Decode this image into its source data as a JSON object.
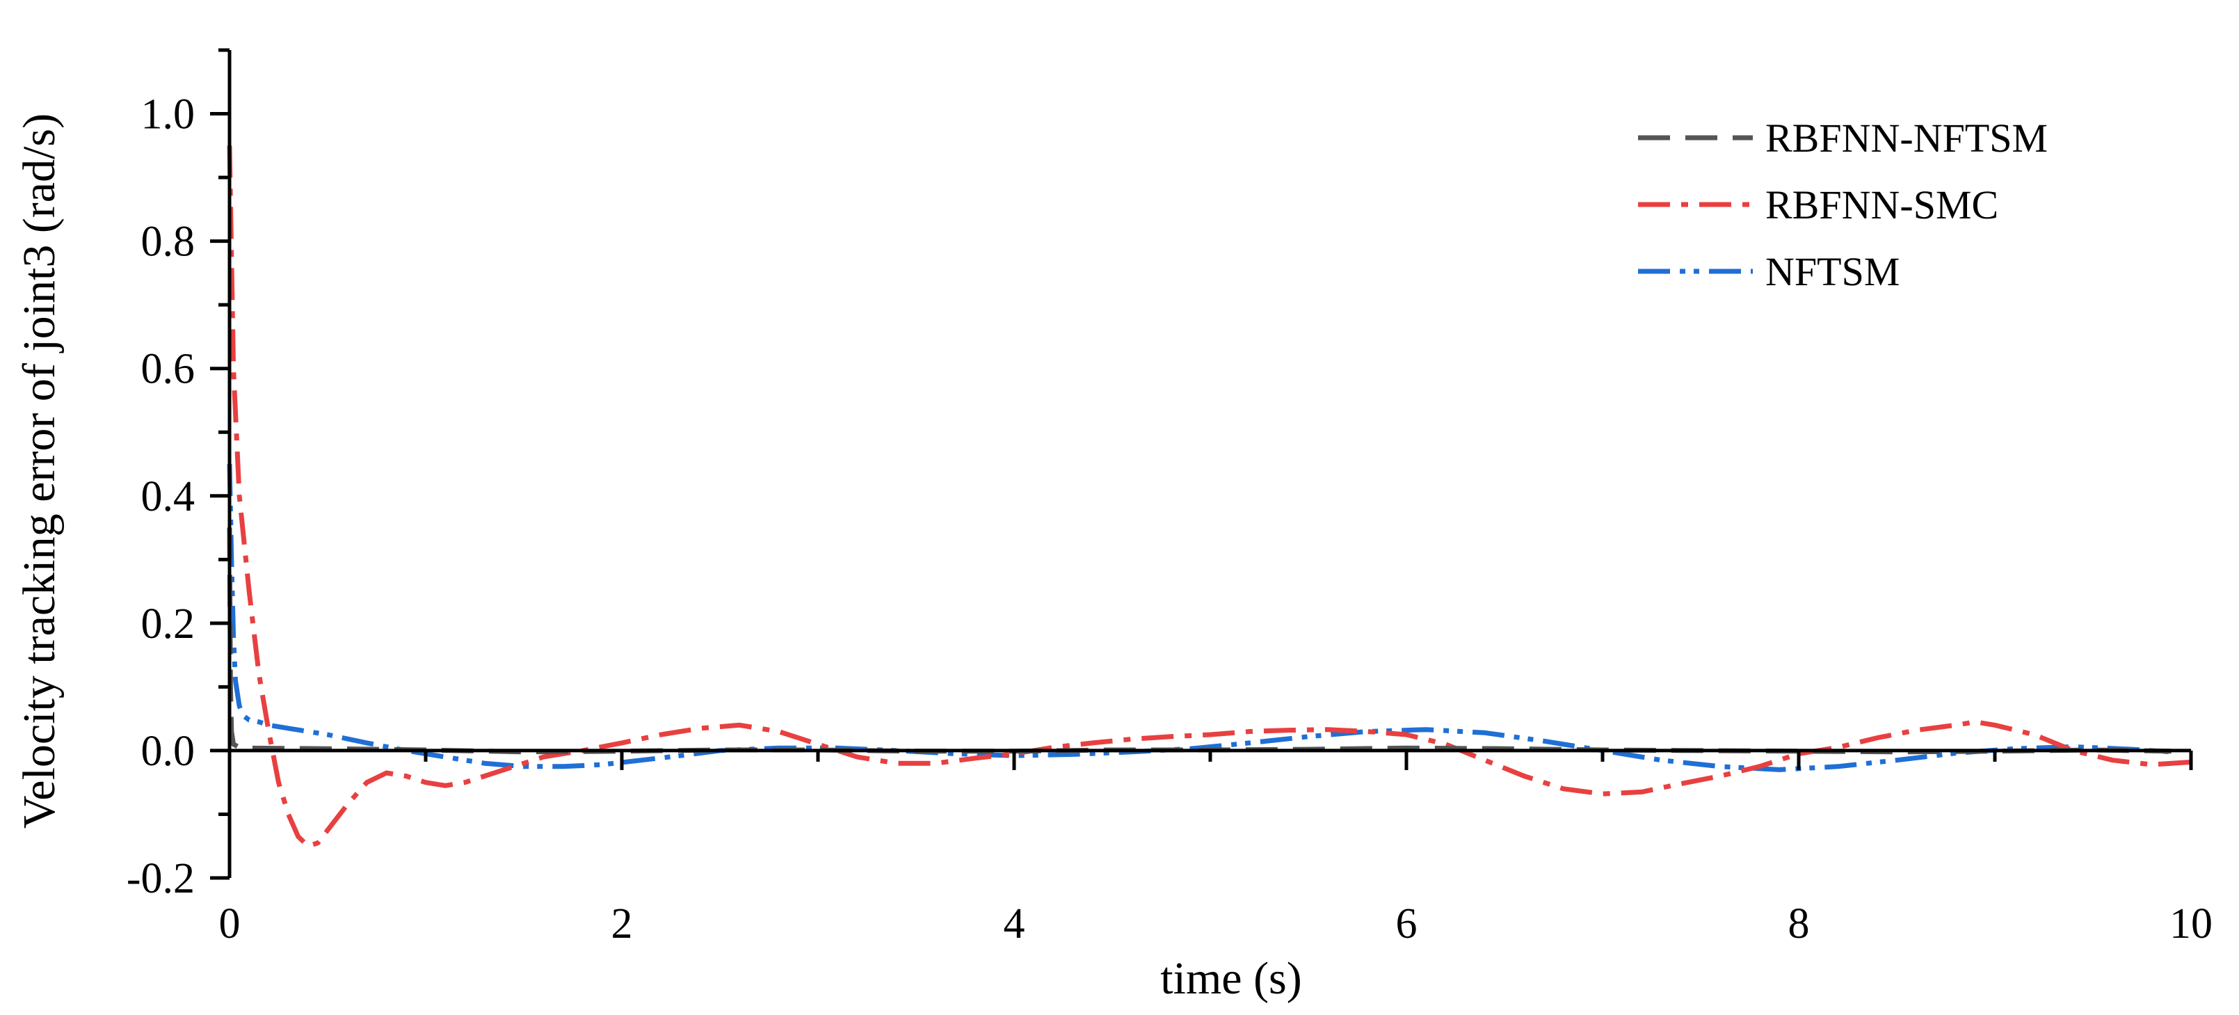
{
  "chart_data": {
    "type": "line",
    "title": "",
    "xlabel": "time (s)",
    "ylabel": "Velocity tracking error of joint3 (rad/s)",
    "xlim": [
      0,
      10
    ],
    "ylim": [
      -0.2,
      1.1
    ],
    "x_ticks": [
      0,
      2,
      4,
      6,
      8,
      10
    ],
    "x_tick_labels": [
      "0",
      "2",
      "4",
      "6",
      "8",
      "10"
    ],
    "x_minor_ticks": [
      1,
      3,
      5,
      7,
      9
    ],
    "y_ticks": [
      -0.2,
      0.0,
      0.2,
      0.4,
      0.6,
      0.8,
      1.0
    ],
    "y_tick_labels": [
      "-0.2",
      "0.0",
      "0.2",
      "0.4",
      "0.6",
      "0.8",
      "1.0"
    ],
    "y_minor_ticks": [
      -0.1,
      0.1,
      0.3,
      0.5,
      0.7,
      0.9,
      1.1
    ],
    "grid": false,
    "legend_position": "top-right",
    "series": [
      {
        "name": "RBFNN-NFTSM",
        "color": "#555555",
        "dash": "dash",
        "x": [
          0,
          0.005,
          0.01,
          0.02,
          0.05,
          0.1,
          0.5,
          1,
          1.5,
          2,
          2.5,
          3,
          3.5,
          4,
          4.5,
          5,
          5.5,
          6,
          6.5,
          7,
          7.5,
          8,
          8.5,
          9,
          9.5,
          9.9
        ],
        "y": [
          0.35,
          0.1,
          0.03,
          0.01,
          0.005,
          0.004,
          0.003,
          0.001,
          -0.002,
          -0.001,
          0.001,
          0.001,
          -0.001,
          -0.001,
          0.001,
          0.001,
          0.002,
          0.004,
          0.003,
          0.001,
          0.0,
          -0.001,
          -0.002,
          -0.001,
          0.001,
          -0.001
        ]
      },
      {
        "name": "RBFNN-SMC",
        "color": "#e84040",
        "dash": "dashdot",
        "x": [
          0,
          0.02,
          0.05,
          0.1,
          0.15,
          0.2,
          0.25,
          0.3,
          0.35,
          0.4,
          0.45,
          0.5,
          0.6,
          0.7,
          0.8,
          0.9,
          1.0,
          1.1,
          1.2,
          1.4,
          1.6,
          1.8,
          2.0,
          2.2,
          2.4,
          2.6,
          2.8,
          3.0,
          3.2,
          3.4,
          3.6,
          3.8,
          4.0,
          4.2,
          4.4,
          4.6,
          4.8,
          5.0,
          5.2,
          5.4,
          5.6,
          5.8,
          6.0,
          6.2,
          6.4,
          6.6,
          6.8,
          7.0,
          7.2,
          7.4,
          7.6,
          7.8,
          8.0,
          8.2,
          8.4,
          8.6,
          8.8,
          8.9,
          9.0,
          9.2,
          9.4,
          9.6,
          9.8,
          10.0
        ],
        "y": [
          0.95,
          0.6,
          0.4,
          0.25,
          0.12,
          0.03,
          -0.05,
          -0.1,
          -0.135,
          -0.15,
          -0.145,
          -0.125,
          -0.085,
          -0.05,
          -0.035,
          -0.04,
          -0.05,
          -0.055,
          -0.05,
          -0.03,
          -0.01,
          0.0,
          0.012,
          0.025,
          0.035,
          0.04,
          0.03,
          0.01,
          -0.01,
          -0.02,
          -0.02,
          -0.012,
          -0.005,
          0.005,
          0.012,
          0.018,
          0.022,
          0.025,
          0.03,
          0.032,
          0.033,
          0.03,
          0.025,
          0.01,
          -0.015,
          -0.04,
          -0.06,
          -0.068,
          -0.065,
          -0.052,
          -0.04,
          -0.025,
          -0.005,
          0.005,
          0.02,
          0.032,
          0.04,
          0.045,
          0.04,
          0.025,
          0.0,
          -0.015,
          -0.022,
          -0.018
        ]
      },
      {
        "name": "NFTSM",
        "color": "#1f6fd6",
        "dash": "dashdotdot",
        "x": [
          0,
          0.01,
          0.02,
          0.03,
          0.05,
          0.07,
          0.1,
          0.15,
          0.2,
          0.3,
          0.5,
          0.7,
          0.9,
          1.1,
          1.3,
          1.5,
          1.7,
          1.9,
          2.1,
          2.3,
          2.5,
          2.8,
          3.1,
          3.4,
          3.7,
          4.0,
          4.3,
          4.6,
          4.9,
          5.2,
          5.5,
          5.8,
          6.1,
          6.4,
          6.7,
          7.0,
          7.3,
          7.6,
          7.9,
          8.2,
          8.5,
          8.8,
          9.1,
          9.4,
          9.7,
          9.9
        ],
        "y": [
          0.45,
          0.3,
          0.18,
          0.11,
          0.07,
          0.055,
          0.048,
          0.045,
          0.04,
          0.035,
          0.025,
          0.012,
          0.0,
          -0.01,
          -0.02,
          -0.025,
          -0.025,
          -0.022,
          -0.015,
          -0.008,
          0.0,
          0.004,
          0.004,
          0.0,
          -0.005,
          -0.008,
          -0.006,
          -0.002,
          0.003,
          0.012,
          0.022,
          0.03,
          0.033,
          0.028,
          0.015,
          0.0,
          -0.015,
          -0.025,
          -0.03,
          -0.025,
          -0.015,
          -0.004,
          0.003,
          0.006,
          0.002,
          -0.002
        ]
      }
    ]
  }
}
